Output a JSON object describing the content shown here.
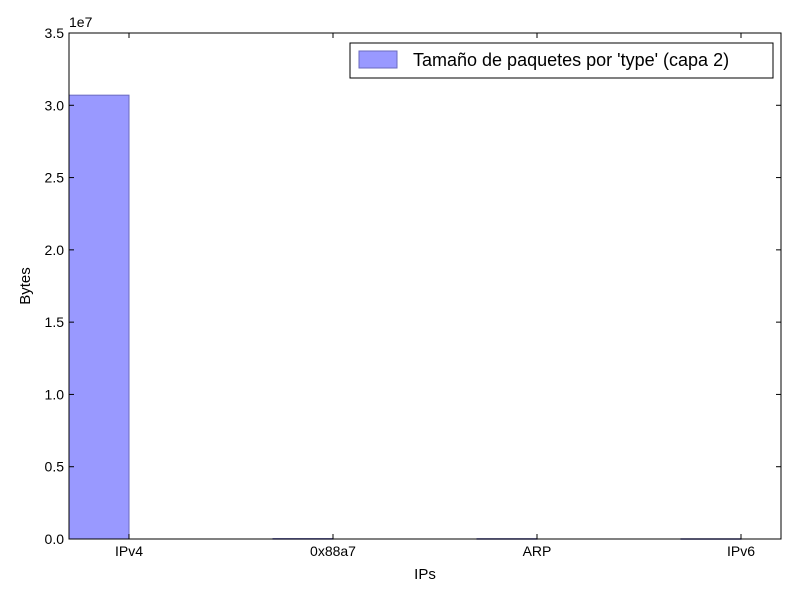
{
  "chart_data": {
    "type": "bar",
    "title": "",
    "xlabel": "IPs",
    "ylabel": "Bytes",
    "y_offset_text": "1e7",
    "y_scale": 10000000,
    "categories": [
      "IPv4",
      "0x88a7",
      "ARP",
      "IPv6"
    ],
    "series": [
      {
        "name": "Tamaño de paquetes por 'type' (capa 2)",
        "values": [
          30700000,
          30000,
          25000,
          20000
        ],
        "color": "#9999ff",
        "edge_color": "#6a6abf"
      }
    ],
    "ylim": [
      0,
      35000000
    ],
    "yticks": [
      0,
      5000000,
      10000000,
      15000000,
      20000000,
      25000000,
      30000000,
      35000000
    ],
    "ytick_labels": [
      "0.0",
      "0.5",
      "1.0",
      "1.5",
      "2.0",
      "2.5",
      "3.0",
      "3.5"
    ],
    "grid": false,
    "legend_position": "top-right"
  }
}
